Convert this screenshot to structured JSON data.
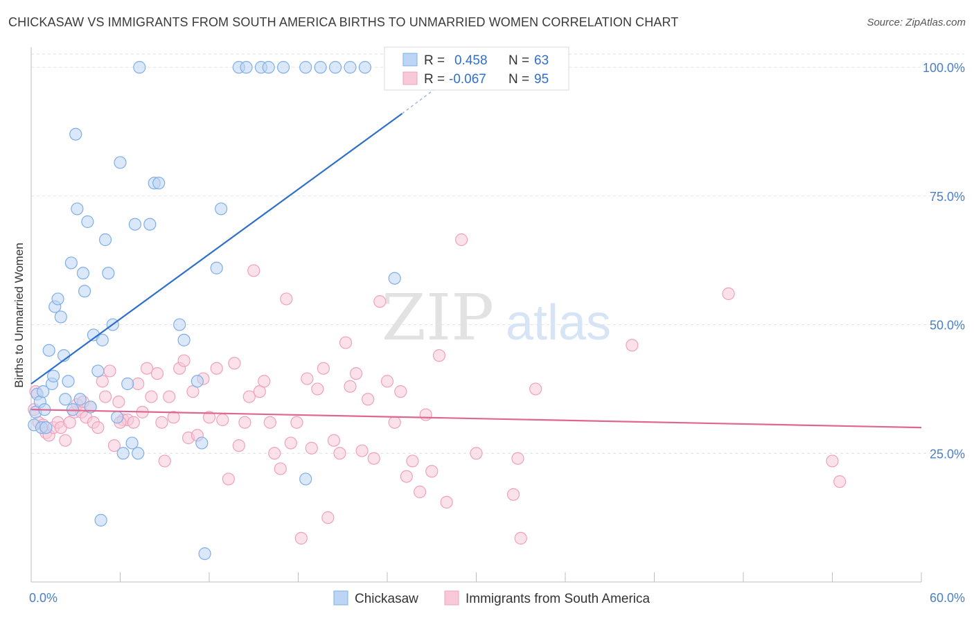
{
  "header": {
    "title": "CHICKASAW VS IMMIGRANTS FROM SOUTH AMERICA BIRTHS TO UNMARRIED WOMEN CORRELATION CHART",
    "source": "Source: ZipAtlas.com"
  },
  "watermark": {
    "zip": "ZIP",
    "atlas": "atlas"
  },
  "chart_data": {
    "type": "scatter",
    "title": "CHICKASAW VS IMMIGRANTS FROM SOUTH AMERICA BIRTHS TO UNMARRIED WOMEN CORRELATION CHART",
    "xlabel": "",
    "ylabel": "Births to Unmarried Women",
    "xlim": [
      0,
      60
    ],
    "ylim": [
      0,
      105
    ],
    "x_tick_labels": {
      "min": "0.0%",
      "max": "60.0%"
    },
    "y_ticks": [
      25,
      50,
      75,
      100
    ],
    "y_tick_labels": [
      "25.0%",
      "50.0%",
      "75.0%",
      "100.0%"
    ],
    "grid": true,
    "legend_position": "top-center",
    "stats": [
      {
        "r_label": "R =",
        "r_value": "0.458",
        "n_label": "N =",
        "n_value": "63"
      },
      {
        "r_label": "R =",
        "r_value": "-0.067",
        "n_label": "N =",
        "n_value": "95"
      }
    ],
    "series": [
      {
        "name": "Chickasaw",
        "color": "#7eaee8",
        "fill": "#bcd5f4",
        "line_color": "#2e6fcc",
        "trend": {
          "x0": 0,
          "y0": 38.5,
          "x1": 25,
          "y1": 91
        },
        "trend_dashed_to": {
          "x": 28,
          "y": 97.5
        },
        "points": [
          [
            0.2,
            30.5
          ],
          [
            0.3,
            33
          ],
          [
            0.4,
            36.5
          ],
          [
            0.6,
            35
          ],
          [
            0.7,
            30
          ],
          [
            0.8,
            37
          ],
          [
            0.9,
            33.5
          ],
          [
            1.0,
            30
          ],
          [
            1.2,
            45
          ],
          [
            1.4,
            38.5
          ],
          [
            1.5,
            40
          ],
          [
            1.6,
            53.5
          ],
          [
            1.8,
            55
          ],
          [
            2.0,
            51.5
          ],
          [
            2.2,
            44
          ],
          [
            2.3,
            35.5
          ],
          [
            2.5,
            39
          ],
          [
            2.7,
            62
          ],
          [
            2.8,
            33.5
          ],
          [
            3.0,
            87
          ],
          [
            3.1,
            72.5
          ],
          [
            3.3,
            35.5
          ],
          [
            3.5,
            60
          ],
          [
            3.6,
            56.5
          ],
          [
            3.8,
            70
          ],
          [
            4.0,
            34
          ],
          [
            4.2,
            48
          ],
          [
            4.5,
            41
          ],
          [
            4.8,
            47
          ],
          [
            5.0,
            66.5
          ],
          [
            5.2,
            60
          ],
          [
            5.5,
            50
          ],
          [
            5.8,
            32
          ],
          [
            6.0,
            81.5
          ],
          [
            6.2,
            25
          ],
          [
            6.5,
            38.5
          ],
          [
            6.8,
            27
          ],
          [
            7.0,
            69.5
          ],
          [
            7.2,
            25
          ],
          [
            8.0,
            69.5
          ],
          [
            8.3,
            77.5
          ],
          [
            8.6,
            77.5
          ],
          [
            10.0,
            50
          ],
          [
            10.3,
            47
          ],
          [
            11.2,
            39
          ],
          [
            11.5,
            27
          ],
          [
            12.5,
            61
          ],
          [
            12.8,
            72.5
          ],
          [
            14.0,
            100
          ],
          [
            14.5,
            100
          ],
          [
            15.5,
            100
          ],
          [
            16.0,
            100
          ],
          [
            17.0,
            100
          ],
          [
            18.5,
            100
          ],
          [
            19.5,
            100
          ],
          [
            20.5,
            100
          ],
          [
            21.5,
            100
          ],
          [
            22.5,
            100
          ],
          [
            24.5,
            59
          ],
          [
            7.3,
            100
          ],
          [
            4.7,
            12
          ],
          [
            11.7,
            5.5
          ],
          [
            18.5,
            20
          ]
        ]
      },
      {
        "name": "Immigrants from South America",
        "color": "#f0a0bc",
        "fill": "#f8cad9",
        "line_color": "#e0658f",
        "trend": {
          "x0": 0,
          "y0": 33.5,
          "x1": 60,
          "y1": 30
        },
        "points": [
          [
            0.2,
            33.5
          ],
          [
            0.3,
            37
          ],
          [
            0.5,
            31
          ],
          [
            0.8,
            30.5
          ],
          [
            1.0,
            29
          ],
          [
            1.2,
            28.5
          ],
          [
            1.5,
            30
          ],
          [
            1.8,
            31
          ],
          [
            2.0,
            30
          ],
          [
            2.3,
            27.5
          ],
          [
            2.6,
            31
          ],
          [
            2.9,
            33
          ],
          [
            3.1,
            34.5
          ],
          [
            3.4,
            33
          ],
          [
            3.7,
            32
          ],
          [
            4.0,
            34
          ],
          [
            4.2,
            31
          ],
          [
            4.5,
            30
          ],
          [
            4.8,
            39
          ],
          [
            5.0,
            36
          ],
          [
            5.3,
            41
          ],
          [
            5.6,
            26.5
          ],
          [
            5.9,
            35
          ],
          [
            6.2,
            31.5
          ],
          [
            6.5,
            31.5
          ],
          [
            6.9,
            31
          ],
          [
            7.2,
            38.5
          ],
          [
            7.5,
            33
          ],
          [
            7.8,
            41.5
          ],
          [
            8.1,
            36
          ],
          [
            8.5,
            40.5
          ],
          [
            8.8,
            31
          ],
          [
            9.0,
            23.5
          ],
          [
            9.3,
            36
          ],
          [
            9.6,
            32
          ],
          [
            10.0,
            41.5
          ],
          [
            10.3,
            43
          ],
          [
            10.6,
            28
          ],
          [
            10.9,
            37
          ],
          [
            11.2,
            28.5
          ],
          [
            11.6,
            39.5
          ],
          [
            12.0,
            32
          ],
          [
            12.5,
            41.5
          ],
          [
            12.9,
            31.5
          ],
          [
            13.3,
            20
          ],
          [
            13.7,
            42.5
          ],
          [
            14.0,
            26.5
          ],
          [
            14.4,
            31
          ],
          [
            14.7,
            36
          ],
          [
            15.0,
            60.5
          ],
          [
            15.4,
            37
          ],
          [
            15.7,
            39
          ],
          [
            16.1,
            31
          ],
          [
            16.4,
            25
          ],
          [
            16.8,
            22
          ],
          [
            17.2,
            55
          ],
          [
            17.5,
            27
          ],
          [
            17.9,
            31
          ],
          [
            18.2,
            8.5
          ],
          [
            18.6,
            39.5
          ],
          [
            18.9,
            26
          ],
          [
            19.3,
            37.5
          ],
          [
            19.7,
            41.5
          ],
          [
            20.0,
            12.5
          ],
          [
            20.4,
            27.5
          ],
          [
            20.8,
            25
          ],
          [
            21.2,
            46.5
          ],
          [
            21.5,
            38
          ],
          [
            21.9,
            40.5
          ],
          [
            22.3,
            25.5
          ],
          [
            22.7,
            35.5
          ],
          [
            23.1,
            24
          ],
          [
            23.5,
            54.5
          ],
          [
            24.0,
            39
          ],
          [
            24.5,
            31
          ],
          [
            24.9,
            37
          ],
          [
            25.3,
            20.5
          ],
          [
            25.7,
            23.5
          ],
          [
            26.2,
            17.5
          ],
          [
            26.6,
            32.5
          ],
          [
            27.0,
            21.5
          ],
          [
            27.5,
            44
          ],
          [
            28.0,
            15.5
          ],
          [
            29.0,
            66.5
          ],
          [
            30.0,
            25
          ],
          [
            32.5,
            17
          ],
          [
            32.8,
            24
          ],
          [
            33.0,
            8.5
          ],
          [
            34.0,
            37.5
          ],
          [
            40.5,
            46
          ],
          [
            47.0,
            56
          ],
          [
            54.0,
            23.5
          ],
          [
            54.5,
            19.5
          ],
          [
            3.5,
            35
          ],
          [
            6.0,
            31
          ]
        ]
      }
    ]
  }
}
